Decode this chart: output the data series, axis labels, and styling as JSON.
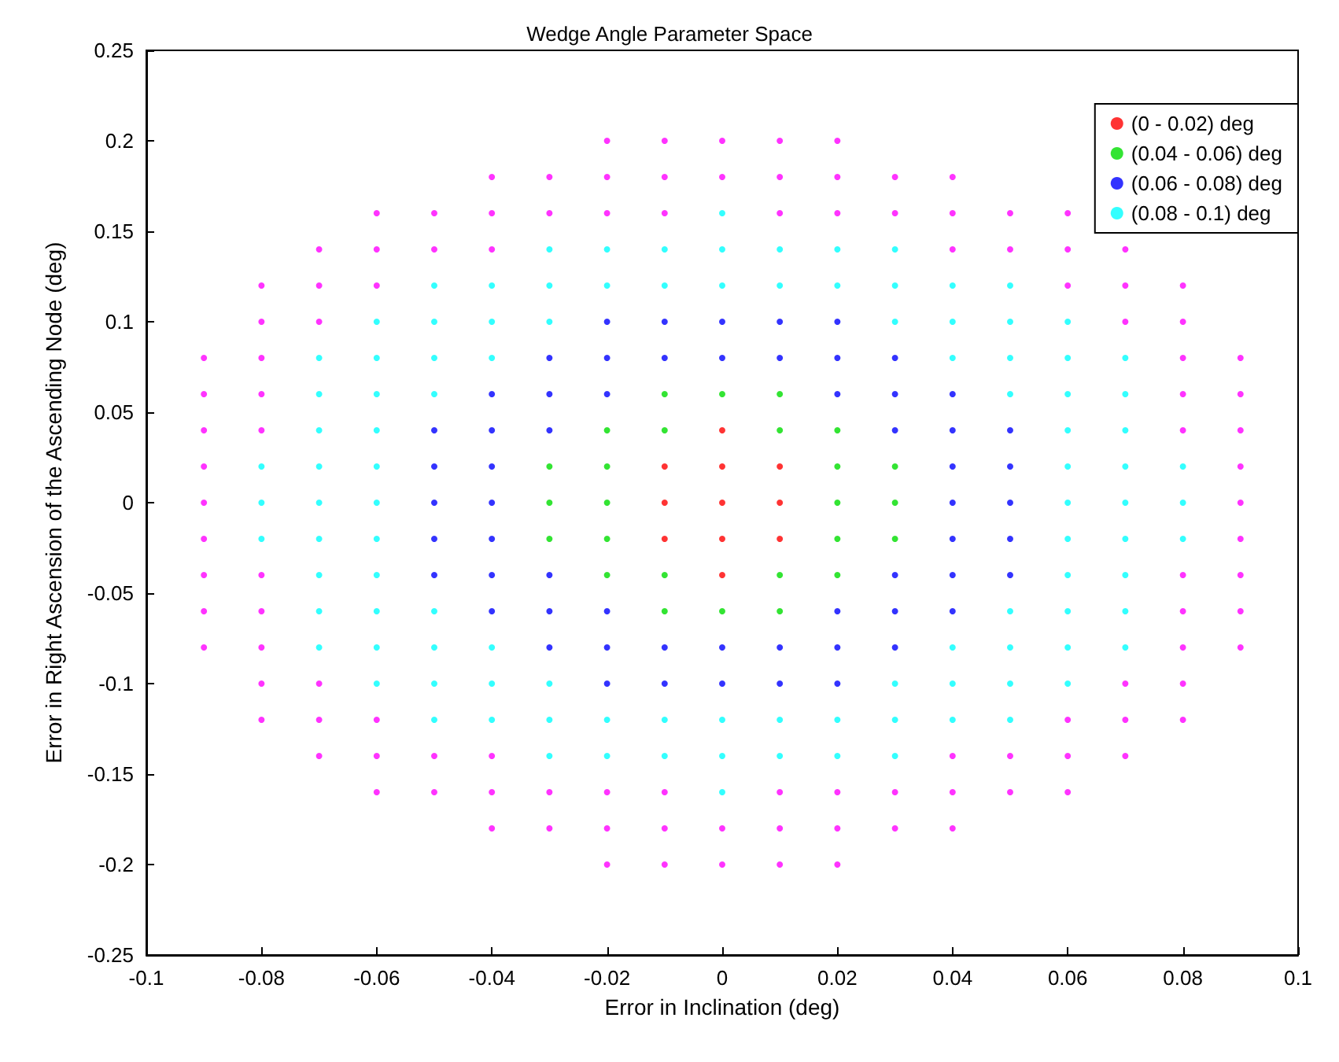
{
  "chart_data": {
    "type": "scatter",
    "title": "Wedge Angle Parameter Space",
    "xlabel": "Error in Inclination (deg)",
    "ylabel": "Error in Right Ascension of the Ascending Node (deg)",
    "xlim": [
      -0.1,
      0.1
    ],
    "xticks": [
      -0.1,
      -0.08,
      -0.06,
      -0.04,
      -0.02,
      0,
      0.02,
      0.04,
      0.06,
      0.08,
      0.1
    ],
    "ylim": [
      -0.25,
      0.25
    ],
    "yticks": [
      -0.25,
      -0.2,
      -0.15,
      -0.1,
      -0.05,
      0,
      0.05,
      0.1,
      0.15,
      0.2,
      0.25
    ],
    "grid": false,
    "legend": "top right",
    "marker": "circle",
    "series": [
      {
        "name": "(0 - 0.02) deg",
        "color": "#ff0000",
        "x": [
          0,
          0,
          0,
          0,
          0,
          -0.01,
          -0.01,
          -0.01,
          0.01,
          0.01,
          0.01
        ],
        "values": [
          -0.04,
          -0.02,
          0,
          0.02,
          0.04,
          -0.02,
          0,
          0.02,
          -0.02,
          0,
          0.02
        ]
      },
      {
        "name": "(0.04 - 0.06) deg",
        "color": "#00dd00",
        "x": [
          0,
          0,
          -0.01,
          -0.01,
          -0.01,
          -0.01,
          0.01,
          0.01,
          0.01,
          0.01,
          -0.02,
          -0.02,
          -0.02,
          -0.02,
          -0.02,
          0.02,
          0.02,
          0.02,
          0.02,
          0.02,
          -0.03,
          -0.03,
          -0.03,
          0.03,
          0.03,
          0.03
        ],
        "values": [
          -0.06,
          0.06,
          -0.06,
          -0.04,
          0.04,
          0.06,
          -0.06,
          -0.04,
          0.04,
          0.06,
          -0.04,
          -0.02,
          0,
          0.02,
          0.04,
          -0.04,
          -0.02,
          0,
          0.02,
          0.04,
          -0.02,
          0,
          0.02,
          -0.02,
          0,
          0.02
        ]
      },
      {
        "name": "(0.06 - 0.08) deg",
        "color": "#0000ff",
        "x": [
          -0.05,
          -0.05,
          -0.05,
          -0.05,
          -0.05,
          -0.04,
          -0.04,
          -0.04,
          -0.04,
          -0.04,
          -0.04,
          -0.04,
          -0.03,
          -0.03,
          -0.03,
          -0.03,
          -0.03,
          -0.03,
          -0.02,
          -0.02,
          -0.02,
          -0.02,
          -0.02,
          -0.02,
          -0.01,
          -0.01,
          -0.01,
          -0.01,
          0,
          0,
          0,
          0,
          0.01,
          0.01,
          0.01,
          0.01,
          0.02,
          0.02,
          0.02,
          0.02,
          0.02,
          0.02,
          0.03,
          0.03,
          0.03,
          0.03,
          0.03,
          0.03,
          0.04,
          0.04,
          0.04,
          0.04,
          0.04,
          0.04,
          0.04,
          0.05,
          0.05,
          0.05,
          0.05,
          0.05
        ],
        "values": [
          -0.04,
          -0.02,
          0,
          0.02,
          0.04,
          -0.06,
          -0.04,
          -0.02,
          0,
          0.02,
          0.04,
          0.06,
          -0.08,
          -0.06,
          -0.04,
          0.04,
          0.06,
          0.08,
          -0.1,
          -0.08,
          -0.06,
          0.06,
          0.08,
          0.1,
          -0.1,
          -0.08,
          0.08,
          0.1,
          -0.1,
          -0.08,
          0.08,
          0.1,
          -0.1,
          -0.08,
          0.08,
          0.1,
          -0.1,
          -0.08,
          -0.06,
          0.06,
          0.08,
          0.1,
          -0.08,
          -0.06,
          -0.04,
          0.04,
          0.06,
          0.08,
          -0.06,
          -0.04,
          -0.02,
          0,
          0.02,
          0.04,
          0.06,
          -0.04,
          -0.02,
          0,
          0.02,
          0.04
        ]
      },
      {
        "name": "(0.08 - 0.1) deg",
        "color": "#00ffff",
        "x": [
          -0.08,
          -0.08,
          -0.08,
          -0.07,
          -0.07,
          -0.07,
          -0.07,
          -0.07,
          -0.07,
          -0.07,
          -0.07,
          -0.07,
          -0.06,
          -0.06,
          -0.06,
          -0.06,
          -0.06,
          -0.06,
          -0.06,
          -0.06,
          -0.06,
          -0.06,
          -0.06,
          -0.05,
          -0.05,
          -0.05,
          -0.05,
          -0.05,
          -0.05,
          -0.05,
          -0.05,
          -0.04,
          -0.04,
          -0.04,
          -0.04,
          -0.04,
          -0.04,
          -0.03,
          -0.03,
          -0.03,
          -0.03,
          -0.03,
          -0.03,
          -0.02,
          -0.02,
          -0.02,
          -0.02,
          -0.01,
          -0.01,
          -0.01,
          -0.01,
          0,
          0,
          0,
          0,
          0,
          0,
          0.01,
          0.01,
          0.01,
          0.01,
          0.02,
          0.02,
          0.02,
          0.02,
          0.03,
          0.03,
          0.03,
          0.03,
          0.03,
          0.03,
          0.04,
          0.04,
          0.04,
          0.04,
          0.04,
          0.04,
          0.05,
          0.05,
          0.05,
          0.05,
          0.05,
          0.05,
          0.05,
          0.05,
          0.06,
          0.06,
          0.06,
          0.06,
          0.06,
          0.06,
          0.06,
          0.06,
          0.06,
          0.06,
          0.06,
          0.07,
          0.07,
          0.07,
          0.07,
          0.07,
          0.07,
          0.07,
          0.07,
          0.07,
          0.08,
          0.08,
          0.08
        ],
        "values": [
          -0.02,
          0,
          0.02,
          -0.08,
          -0.06,
          -0.04,
          -0.02,
          0,
          0.02,
          0.04,
          0.06,
          0.08,
          -0.1,
          -0.08,
          -0.06,
          -0.04,
          -0.02,
          0,
          0.02,
          0.04,
          0.06,
          0.08,
          0.1,
          -0.12,
          -0.1,
          -0.08,
          -0.06,
          0.06,
          0.08,
          0.1,
          0.12,
          -0.12,
          -0.1,
          -0.08,
          0.08,
          0.1,
          0.12,
          -0.14,
          -0.12,
          -0.1,
          0.1,
          0.12,
          0.14,
          -0.14,
          -0.12,
          0.12,
          0.14,
          -0.14,
          -0.12,
          0.12,
          0.14,
          -0.16,
          -0.14,
          -0.12,
          0.12,
          0.14,
          0.16,
          -0.14,
          -0.12,
          0.12,
          0.14,
          -0.14,
          -0.12,
          0.12,
          0.14,
          -0.14,
          -0.12,
          -0.1,
          0.1,
          0.12,
          0.14,
          -0.12,
          -0.1,
          -0.08,
          0.08,
          0.1,
          0.12,
          -0.12,
          -0.1,
          -0.08,
          -0.06,
          0.06,
          0.08,
          0.1,
          0.12,
          -0.1,
          -0.08,
          -0.06,
          -0.04,
          -0.02,
          0,
          0.02,
          0.04,
          0.06,
          0.08,
          0.1,
          -0.08,
          -0.06,
          -0.04,
          -0.02,
          0,
          0.02,
          0.04,
          0.06,
          0.08,
          -0.02,
          0,
          0.02
        ]
      },
      {
        "color": "#ff00ff",
        "x": [
          -0.09,
          -0.09,
          -0.09,
          -0.09,
          -0.09,
          -0.09,
          -0.09,
          -0.09,
          -0.09,
          -0.08,
          -0.08,
          -0.08,
          -0.08,
          -0.08,
          -0.08,
          -0.08,
          -0.08,
          -0.08,
          -0.08,
          -0.07,
          -0.07,
          -0.07,
          -0.07,
          -0.07,
          -0.07,
          -0.06,
          -0.06,
          -0.06,
          -0.06,
          -0.06,
          -0.06,
          -0.05,
          -0.05,
          -0.05,
          -0.05,
          -0.04,
          -0.04,
          -0.04,
          -0.04,
          -0.04,
          -0.04,
          -0.03,
          -0.03,
          -0.03,
          -0.03,
          -0.02,
          -0.02,
          -0.02,
          -0.02,
          -0.02,
          -0.02,
          -0.01,
          -0.01,
          -0.01,
          -0.01,
          -0.01,
          -0.01,
          0,
          0,
          0,
          0,
          0.01,
          0.01,
          0.01,
          0.01,
          0.01,
          0.01,
          0.02,
          0.02,
          0.02,
          0.02,
          0.02,
          0.02,
          0.03,
          0.03,
          0.03,
          0.03,
          0.04,
          0.04,
          0.04,
          0.04,
          0.04,
          0.04,
          0.05,
          0.05,
          0.05,
          0.05,
          0.06,
          0.06,
          0.06,
          0.06,
          0.06,
          0.06,
          0.07,
          0.07,
          0.07,
          0.07,
          0.07,
          0.07,
          0.08,
          0.08,
          0.08,
          0.08,
          0.08,
          0.08,
          0.08,
          0.08,
          0.08,
          0.08,
          0.09,
          0.09,
          0.09,
          0.09,
          0.09,
          0.09,
          0.09,
          0.09,
          0.09
        ],
        "values": [
          -0.08,
          -0.06,
          -0.04,
          -0.02,
          0,
          0.02,
          0.04,
          0.06,
          0.08,
          -0.12,
          -0.1,
          -0.08,
          -0.06,
          -0.04,
          0.04,
          0.06,
          0.08,
          0.1,
          0.12,
          -0.14,
          -0.12,
          -0.1,
          0.1,
          0.12,
          0.14,
          -0.16,
          -0.14,
          -0.12,
          0.12,
          0.14,
          0.16,
          -0.16,
          -0.14,
          0.14,
          0.16,
          -0.18,
          -0.16,
          -0.14,
          0.14,
          0.16,
          0.18,
          -0.18,
          -0.16,
          0.16,
          0.18,
          -0.2,
          -0.18,
          -0.16,
          0.16,
          0.18,
          0.2,
          -0.2,
          -0.18,
          -0.16,
          0.16,
          0.18,
          0.2,
          -0.2,
          -0.18,
          0.18,
          0.2,
          -0.2,
          -0.18,
          -0.16,
          0.16,
          0.18,
          0.2,
          -0.2,
          -0.18,
          -0.16,
          0.16,
          0.18,
          0.2,
          -0.18,
          -0.16,
          0.16,
          0.18,
          -0.18,
          -0.16,
          -0.14,
          0.14,
          0.16,
          0.18,
          -0.16,
          -0.14,
          0.14,
          0.16,
          -0.16,
          -0.14,
          -0.12,
          0.12,
          0.14,
          0.16,
          -0.14,
          -0.12,
          -0.1,
          0.1,
          0.12,
          0.14,
          -0.12,
          -0.1,
          -0.08,
          -0.06,
          -0.04,
          0.04,
          0.06,
          0.08,
          0.1,
          0.12,
          -0.08,
          -0.06,
          -0.04,
          -0.02,
          0,
          0.02,
          0.04,
          0.06,
          0.08
        ]
      }
    ]
  }
}
